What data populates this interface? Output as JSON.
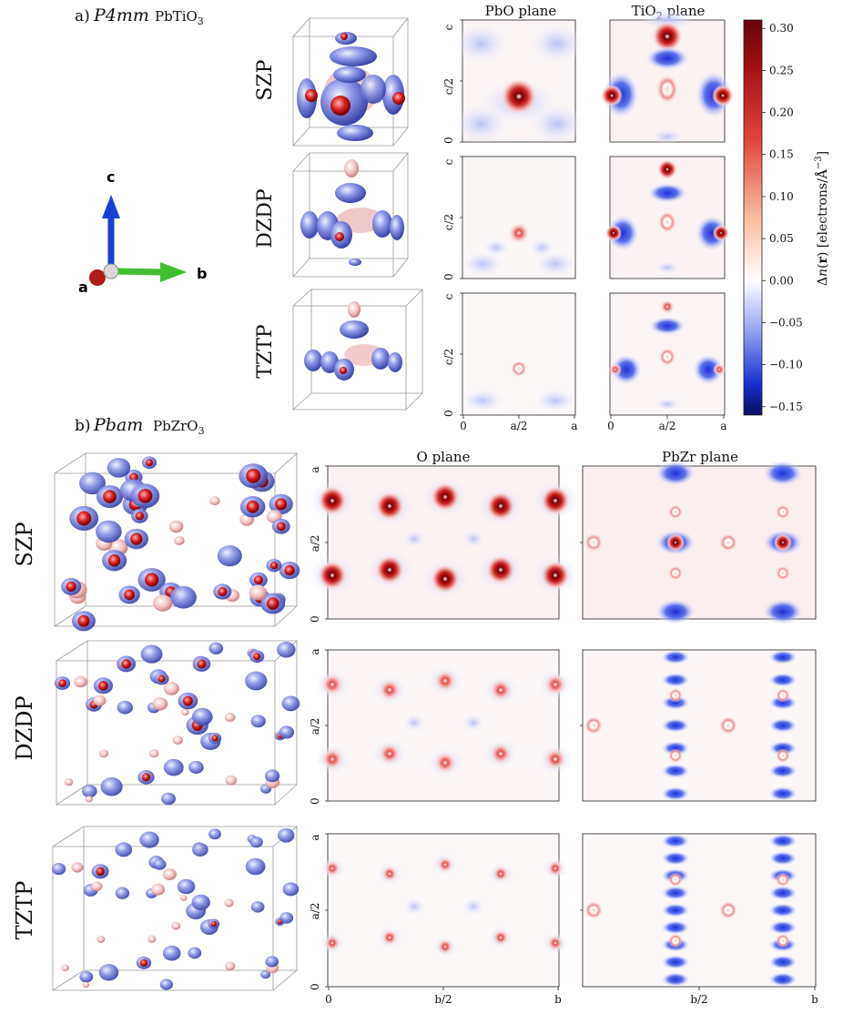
{
  "panel_a": {
    "label": "a)",
    "space_group": "P4mm",
    "compound": "PbTiO3",
    "basis_rows": [
      "SZP",
      "DZDP",
      "TZTP"
    ],
    "plane_titles": [
      "PbO plane",
      "TiO2 plane"
    ],
    "y_ticks": [
      "0",
      "c/2",
      "c"
    ],
    "x_ticks": [
      "0",
      "a/2",
      "a"
    ]
  },
  "panel_b": {
    "label": "b)",
    "space_group": "Pbam",
    "compound": "PbZrO3",
    "basis_rows": [
      "SZP",
      "DZDP",
      "TZTP"
    ],
    "plane_titles": [
      "O plane",
      "PbZr plane"
    ],
    "y_ticks": [
      "0",
      "a/2",
      "a"
    ],
    "x_ticks": [
      "0",
      "b/2",
      "b"
    ]
  },
  "axes_icon": {
    "labels": [
      "c",
      "a",
      "b"
    ],
    "colors": {
      "c": "#1a3fd6",
      "a": "#b01a1a",
      "b": "#3fbf2f"
    }
  },
  "colorbar": {
    "label": "Δn(r) [electrons/Å^-3]",
    "ticks": [
      "0.30",
      "0.25",
      "0.20",
      "0.15",
      "0.10",
      "0.05",
      "0.00",
      "−0.05",
      "−0.10",
      "−0.15"
    ],
    "tick_values": [
      0.3,
      0.25,
      0.2,
      0.15,
      0.1,
      0.05,
      0.0,
      -0.05,
      -0.1,
      -0.15
    ],
    "range": [
      -0.16,
      0.31
    ],
    "colormap": "seismic",
    "color_max": "#67000d",
    "color_zero": "#ffffff",
    "color_min": "#0a0a5e"
  }
}
